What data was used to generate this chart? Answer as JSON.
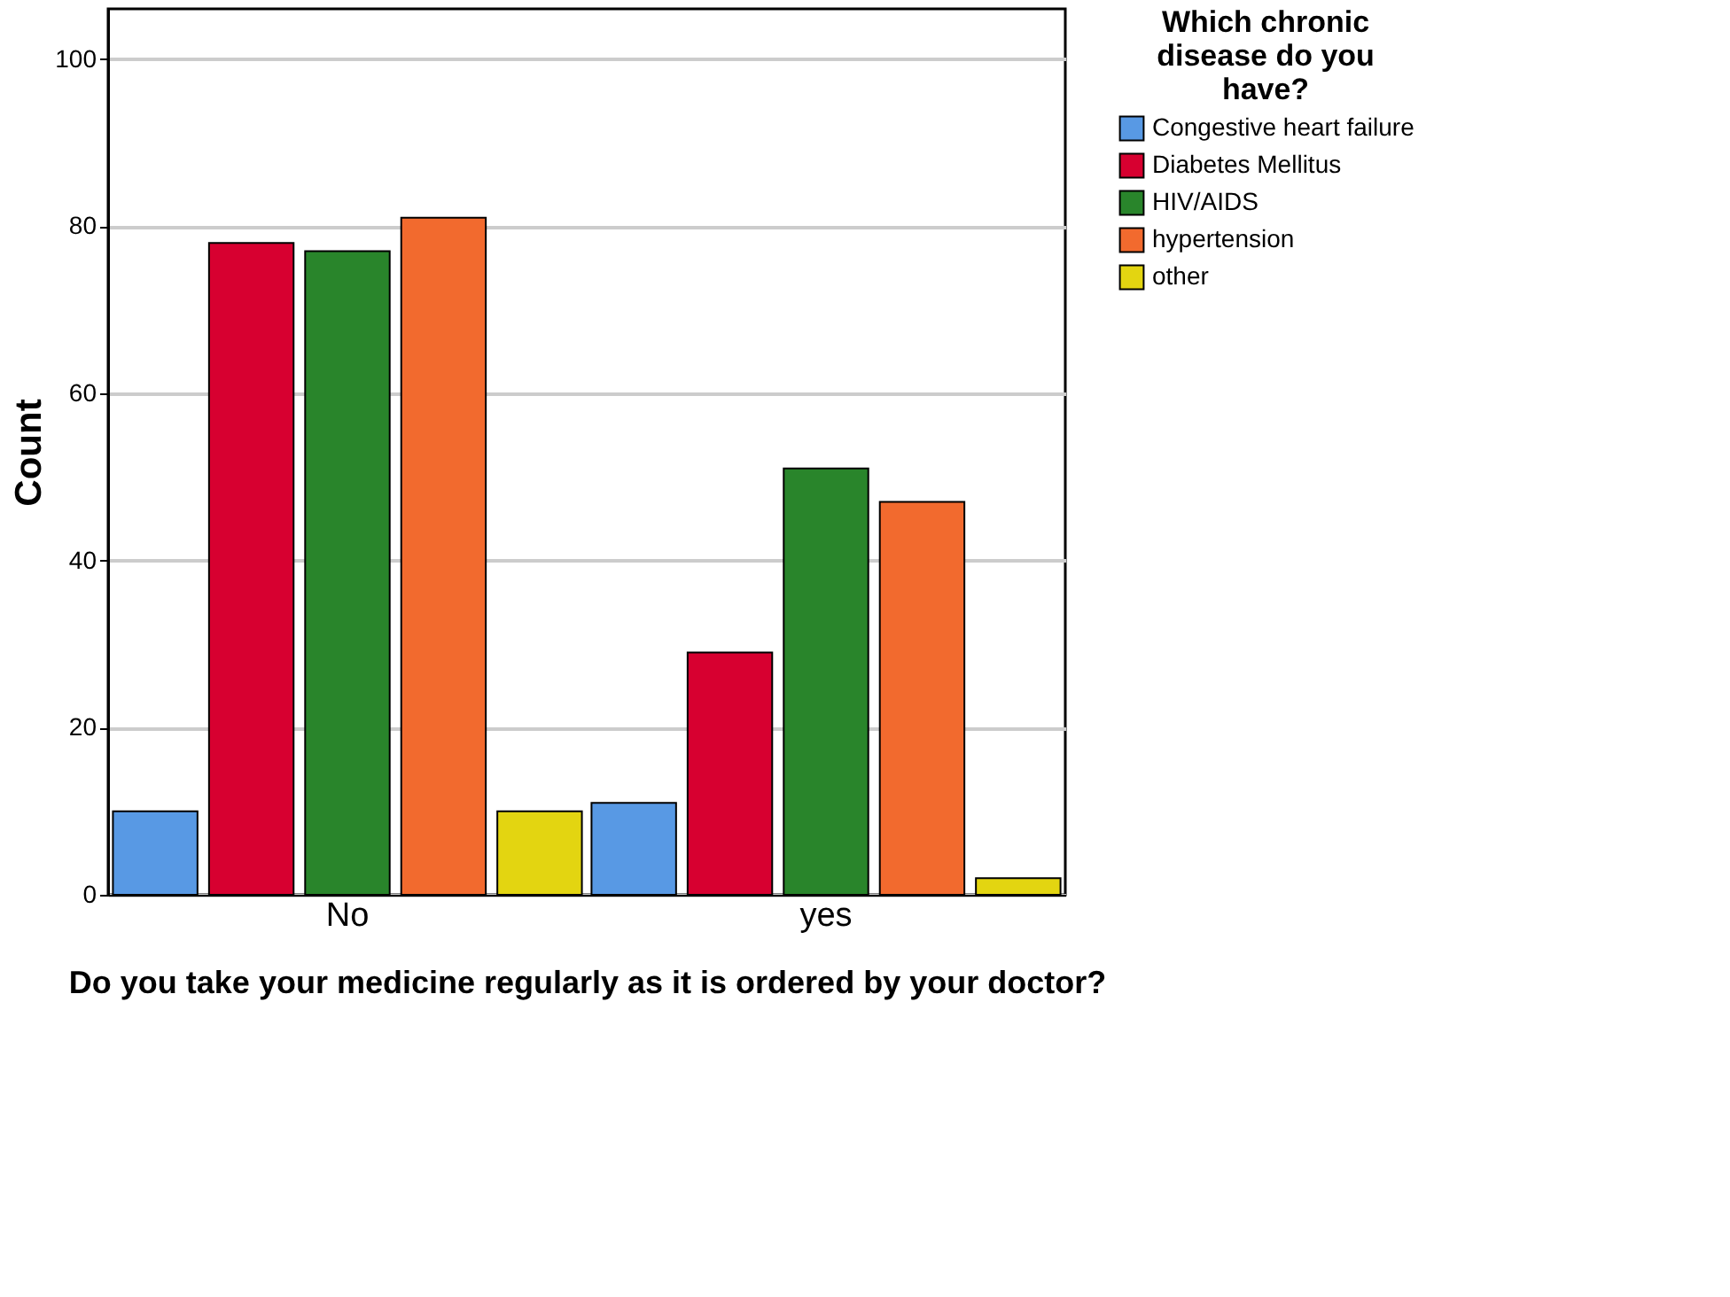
{
  "chart_data": {
    "type": "bar",
    "xlabel": "Do you take your medicine regularly as it is ordered by your doctor?",
    "ylabel": "Count",
    "legend_title": "Which chronic disease do you have?",
    "categories": [
      "No",
      "yes"
    ],
    "series": [
      {
        "name": "Congestive heart failure",
        "color": "#5899e4",
        "values": [
          10,
          11
        ]
      },
      {
        "name": "Diabetes Mellitus",
        "color": "#d70030",
        "values": [
          78,
          29
        ]
      },
      {
        "name": "HIV/AIDS",
        "color": "#29852b",
        "values": [
          77,
          51
        ]
      },
      {
        "name": "hypertension",
        "color": "#f26a2e",
        "values": [
          81,
          47
        ]
      },
      {
        "name": "other",
        "color": "#e3d511",
        "values": [
          10,
          2
        ]
      }
    ],
    "ylim": [
      0,
      106
    ],
    "yticks": [
      0,
      20,
      40,
      60,
      80,
      100
    ],
    "grid": "y",
    "legend": "top right"
  }
}
